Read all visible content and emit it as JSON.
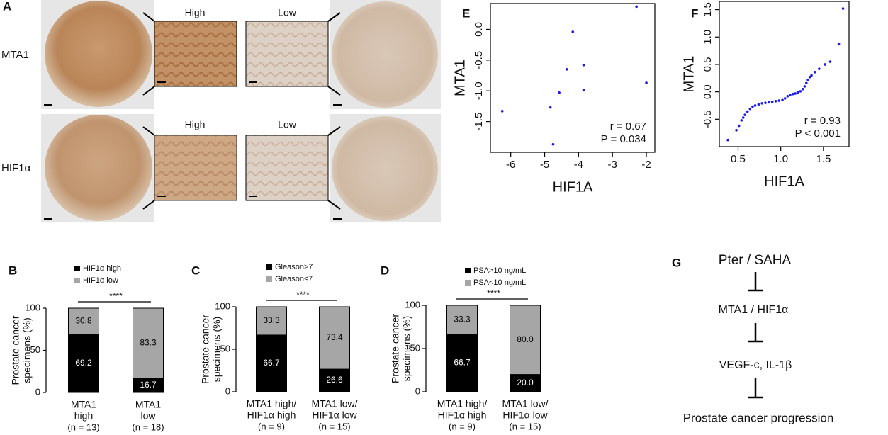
{
  "panel_a": {
    "label": "A",
    "rows": [
      "MTA1",
      "HIF1α"
    ],
    "zoom_labels": [
      [
        "High",
        "Low"
      ],
      [
        "High",
        "Low"
      ]
    ]
  },
  "chart_data": [
    {
      "type": "bar",
      "stacked": true,
      "label": "B",
      "ylabel": [
        "Prostate cancer",
        "specimens (%)"
      ],
      "categories": [
        [
          "MTA1",
          "high"
        ],
        [
          "MTA1",
          "low"
        ]
      ],
      "n_labels": [
        "(n = 13)",
        "(n = 18)"
      ],
      "series": [
        {
          "name": "HIF1α high",
          "color": "#000000",
          "values": [
            69.2,
            16.7
          ]
        },
        {
          "name": "HIF1α low",
          "color": "#a6a6a6",
          "values": [
            30.8,
            83.3
          ]
        }
      ],
      "significance": "****",
      "ylim": [
        0,
        100
      ],
      "yticks": [
        0,
        50,
        100
      ]
    },
    {
      "type": "bar",
      "stacked": true,
      "label": "C",
      "ylabel": [
        "Prostate cancer",
        "specimens (%)"
      ],
      "categories": [
        [
          "MTA1 high/",
          "HIF1α high"
        ],
        [
          "MTA1 low/",
          "HIF1α low"
        ]
      ],
      "n_labels": [
        "(n = 9)",
        "(n = 15)"
      ],
      "series": [
        {
          "name": "Gleason>7",
          "color": "#000000",
          "values": [
            66.7,
            26.6
          ]
        },
        {
          "name": "Gleason≤7",
          "color": "#a6a6a6",
          "values": [
            33.3,
            73.4
          ]
        }
      ],
      "significance": "****",
      "ylim": [
        0,
        100
      ],
      "yticks": [
        0,
        50,
        100
      ]
    },
    {
      "type": "bar",
      "stacked": true,
      "label": "D",
      "ylabel": [
        "Prostate cancer",
        "specimens (%)"
      ],
      "categories": [
        [
          "MTA1 high/",
          "HIF1α high"
        ],
        [
          "MTA1 low/",
          "HIF1α low"
        ]
      ],
      "n_labels": [
        "(n = 9)",
        "(n = 15)"
      ],
      "series": [
        {
          "name": "PSA>10 ng/mL",
          "color": "#000000",
          "values": [
            66.7,
            20
          ],
          "value_labels": [
            "66.7",
            "20.0"
          ]
        },
        {
          "name": "PSA<10 ng/mL",
          "color": "#a6a6a6",
          "values": [
            33.3,
            80
          ],
          "value_labels": [
            "33.3",
            "80.0"
          ]
        }
      ],
      "significance": "****",
      "ylim": [
        0,
        100
      ],
      "yticks": [
        0,
        50,
        100
      ]
    },
    {
      "type": "scatter",
      "label": "E",
      "xlabel": "HIF1A",
      "ylabel": "MTA1",
      "color": "#1a1ae6",
      "x": [
        -6.25,
        -4.83,
        -4.75,
        -4.57,
        -4.35,
        -4.17,
        -3.85,
        -3.85,
        -2.29,
        -2.0
      ],
      "values": [
        -1.33,
        -1.27,
        -1.87,
        -1.03,
        -0.65,
        -0.04,
        -0.58,
        -0.99,
        0.37,
        -0.87
      ],
      "annotations": [
        "r = 0.67",
        "P = 0.034"
      ],
      "xlim": [
        -6.6,
        -1.75
      ],
      "ylim": [
        -2.0,
        0.42
      ],
      "xticks": [
        -6,
        -5,
        -4,
        -3,
        -2
      ],
      "yticks": [
        -1.5,
        {
          "value": -1,
          "label": "-1.0"
        },
        -0.5,
        {
          "value": 0,
          "label": "0.0"
        }
      ]
    },
    {
      "type": "scatter",
      "label": "F",
      "xlabel": "HIF1A",
      "ylabel": "MTA1",
      "color": "#1a1ae6",
      "x": [
        0.38,
        0.48,
        0.51,
        0.54,
        0.56,
        0.58,
        0.61,
        0.64,
        0.67,
        0.7,
        0.74,
        0.78,
        0.82,
        0.86,
        0.9,
        0.94,
        0.98,
        1.02,
        1.05,
        1.08,
        1.11,
        1.14,
        1.17,
        1.2,
        1.23,
        1.26,
        1.28,
        1.3,
        1.32,
        1.34,
        1.36,
        1.4,
        1.45,
        1.52,
        1.58,
        1.68,
        1.73
      ],
      "values": [
        -0.88,
        -0.7,
        -0.62,
        -0.52,
        -0.47,
        -0.42,
        -0.36,
        -0.31,
        -0.27,
        -0.25,
        -0.23,
        -0.21,
        -0.2,
        -0.19,
        -0.18,
        -0.17,
        -0.16,
        -0.15,
        -0.12,
        -0.08,
        -0.06,
        -0.04,
        -0.03,
        -0.01,
        0.01,
        0.05,
        0.1,
        0.16,
        0.22,
        0.27,
        0.3,
        0.36,
        0.42,
        0.5,
        0.55,
        0.87,
        1.52
      ],
      "annotations": [
        "r = 0.93",
        "P < 0.001"
      ],
      "xlim": [
        0.28,
        1.8
      ],
      "ylim": [
        -1.0,
        1.65
      ],
      "xticks": [
        0.5,
        {
          "value": 1,
          "label": "1.0"
        },
        1.5
      ],
      "yticks": [
        -0.5,
        {
          "value": 0,
          "label": "0.0"
        },
        0.5,
        {
          "value": 1,
          "label": "1.0"
        },
        1.5
      ]
    }
  ],
  "panel_g": {
    "label": "G",
    "steps": [
      "Pter / SAHA",
      "MTA1 / HIF1α",
      "VEGF-c, IL-1β",
      "Prostate cancer progression"
    ]
  }
}
